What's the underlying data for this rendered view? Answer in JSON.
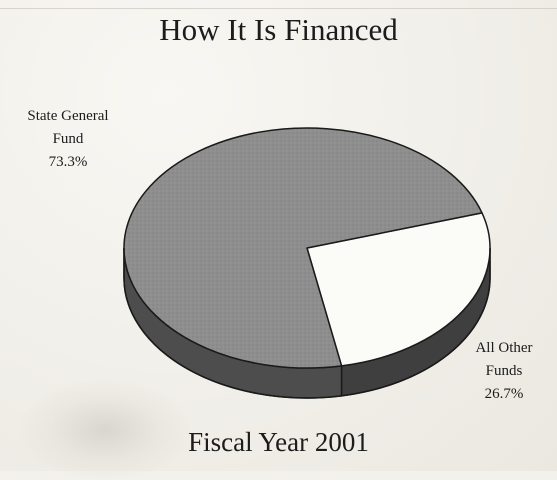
{
  "chart_data": {
    "type": "pie",
    "title": "How It Is Financed",
    "footer": "Fiscal Year 2001",
    "slices": [
      {
        "name": "State General Fund",
        "name_lines": [
          "State General",
          "Fund"
        ],
        "value": 73.3,
        "value_label": "73.3%",
        "color": "#8f8f8f"
      },
      {
        "name": "All Other Funds",
        "name_lines": [
          "All Other",
          "Funds"
        ],
        "value": 26.7,
        "value_label": "26.7%",
        "color": "#fbfbf8"
      }
    ],
    "legend": "none",
    "style": "3d"
  }
}
